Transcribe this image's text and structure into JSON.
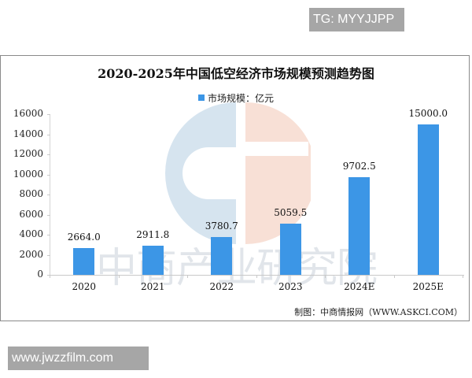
{
  "overlays": {
    "top_tag": "TG: MYYJJPP",
    "bottom_tag": "www.jwzzfilm.com"
  },
  "colors": {
    "bar": "#3c96e6",
    "watermark_blue": "#d6e4ef",
    "watermark_peach": "#f8e0d6",
    "tag_bg": "#a6a6a6"
  },
  "watermark": {
    "text": "中商产业研究院"
  },
  "source": "制图：中商情报网（WWW.ASKCI.COM）",
  "chart_data": {
    "type": "bar",
    "title": "2020-2025年中国低空经济市场规模预测趋势图",
    "legend": [
      {
        "name": "市场规模：亿元",
        "color": "#3c96e6"
      }
    ],
    "legend_position": "top",
    "categories": [
      "2020",
      "2021",
      "2022",
      "2023",
      "2024E",
      "2025E"
    ],
    "series": [
      {
        "name": "市场规模：亿元",
        "values": [
          2664.0,
          2911.8,
          3780.7,
          5059.5,
          9702.5,
          15000.0
        ]
      }
    ],
    "value_labels": [
      "2664.0",
      "2911.8",
      "3780.7",
      "5059.5",
      "9702.5",
      "15000.0"
    ],
    "xlabel": "",
    "ylabel": "",
    "ylim": [
      0,
      16000
    ],
    "yticks": [
      "0",
      "2000",
      "4000",
      "6000",
      "8000",
      "10000",
      "12000",
      "14000",
      "16000"
    ],
    "grid": false
  }
}
